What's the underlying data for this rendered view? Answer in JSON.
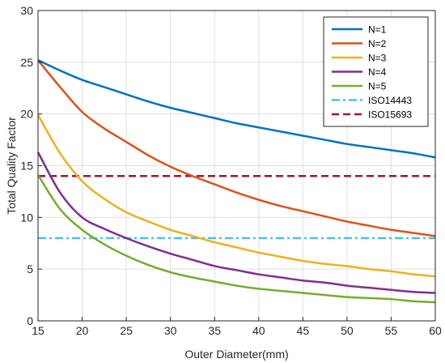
{
  "chart_data": {
    "type": "line",
    "xlabel": "Outer Diameter(mm)",
    "ylabel": "Total Quality Factor",
    "xlim": [
      15,
      60
    ],
    "ylim": [
      0,
      30
    ],
    "xticks": [
      15,
      20,
      25,
      30,
      35,
      40,
      45,
      50,
      55,
      60
    ],
    "yticks": [
      0,
      5,
      10,
      15,
      20,
      25,
      30
    ],
    "grid": true,
    "legend_position": "top-right",
    "x": [
      15,
      17.5,
      20,
      22.5,
      25,
      27.5,
      30,
      32.5,
      35,
      37.5,
      40,
      42.5,
      45,
      47.5,
      50,
      52.5,
      55,
      57.5,
      60
    ],
    "series": [
      {
        "name": "N=1",
        "color": "#0072BD",
        "style": "solid",
        "values": [
          25.2,
          24.2,
          23.3,
          22.6,
          21.9,
          21.2,
          20.6,
          20.1,
          19.6,
          19.1,
          18.7,
          18.3,
          17.9,
          17.5,
          17.1,
          16.8,
          16.5,
          16.2,
          15.8
        ]
      },
      {
        "name": "N=2",
        "color": "#D95319",
        "style": "solid",
        "values": [
          25.2,
          22.6,
          20.2,
          18.6,
          17.3,
          16.0,
          14.9,
          14.0,
          13.2,
          12.4,
          11.7,
          11.1,
          10.6,
          10.1,
          9.6,
          9.2,
          8.8,
          8.5,
          8.2
        ]
      },
      {
        "name": "N=3",
        "color": "#EDB120",
        "style": "solid",
        "values": [
          19.9,
          16.2,
          13.5,
          11.8,
          10.5,
          9.6,
          8.8,
          8.2,
          7.6,
          7.1,
          6.6,
          6.2,
          5.8,
          5.5,
          5.3,
          5.0,
          4.8,
          4.5,
          4.3
        ]
      },
      {
        "name": "N=4",
        "color": "#7E2F8E",
        "style": "solid",
        "values": [
          16.3,
          12.4,
          10.0,
          8.9,
          8.0,
          7.2,
          6.5,
          5.9,
          5.3,
          4.9,
          4.5,
          4.2,
          3.9,
          3.7,
          3.4,
          3.2,
          3.0,
          2.8,
          2.7
        ]
      },
      {
        "name": "N=5",
        "color": "#77AC30",
        "style": "solid",
        "values": [
          14.1,
          10.8,
          8.8,
          7.4,
          6.3,
          5.4,
          4.7,
          4.2,
          3.8,
          3.4,
          3.1,
          2.9,
          2.7,
          2.5,
          2.3,
          2.2,
          2.1,
          1.9,
          1.8
        ]
      },
      {
        "name": "ISO14443",
        "color": "#4DBEEE",
        "style": "dashdot",
        "values": [
          8,
          8,
          8,
          8,
          8,
          8,
          8,
          8,
          8,
          8,
          8,
          8,
          8,
          8,
          8,
          8,
          8,
          8,
          8
        ]
      },
      {
        "name": "ISO15693",
        "color": "#A2142F",
        "style": "dashed",
        "values": [
          14,
          14,
          14,
          14,
          14,
          14,
          14,
          14,
          14,
          14,
          14,
          14,
          14,
          14,
          14,
          14,
          14,
          14,
          14
        ]
      }
    ]
  }
}
